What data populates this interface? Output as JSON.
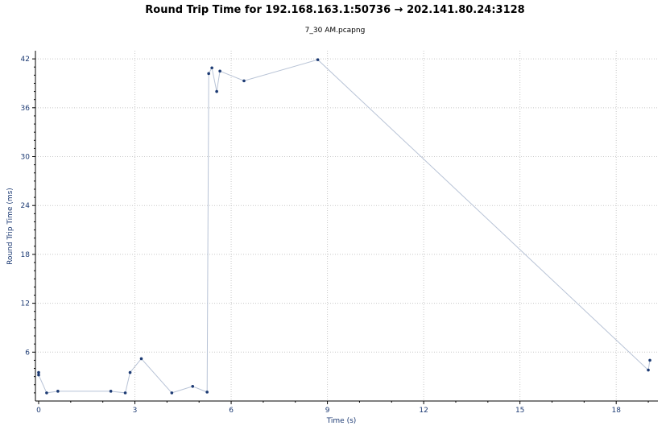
{
  "header": {
    "title": "Round Trip Time for 192.168.163.1:50736 → 202.141.80.24:3128",
    "subtitle": "7_30 AM.pcapng"
  },
  "chart_data": {
    "type": "scatter",
    "title": "Round Trip Time for 192.168.163.1:50736 → 202.141.80.24:3128",
    "subtitle": "7_30 AM.pcapng",
    "xlabel": "Time (s)",
    "ylabel": "Round Trip Time (ms)",
    "xlim": [
      -0.1,
      19.3
    ],
    "ylim": [
      0,
      43
    ],
    "xticks": [
      0,
      3,
      6,
      9,
      12,
      15,
      18
    ],
    "yticks": [
      6,
      12,
      18,
      24,
      30,
      36,
      42
    ],
    "grid": true,
    "connected": true,
    "colors": {
      "line": "#b8c3d6",
      "marker": "#1c3a73",
      "axis": "#000000",
      "grid": "#c8c8c8",
      "tick_text": "#1c3a73"
    },
    "series": [
      {
        "x": [
          0.0,
          0.0,
          0.25,
          0.6,
          2.25,
          2.7,
          2.85,
          3.2,
          4.15,
          4.8,
          5.25,
          5.3,
          5.4,
          5.55,
          5.65,
          6.4,
          8.7,
          19.0,
          19.05
        ],
        "y": [
          3.5,
          3.2,
          1.0,
          1.2,
          1.2,
          1.0,
          3.5,
          5.2,
          1.0,
          1.8,
          1.1,
          40.2,
          40.9,
          38.0,
          40.5,
          39.3,
          41.9,
          3.8,
          5.0
        ]
      }
    ]
  }
}
